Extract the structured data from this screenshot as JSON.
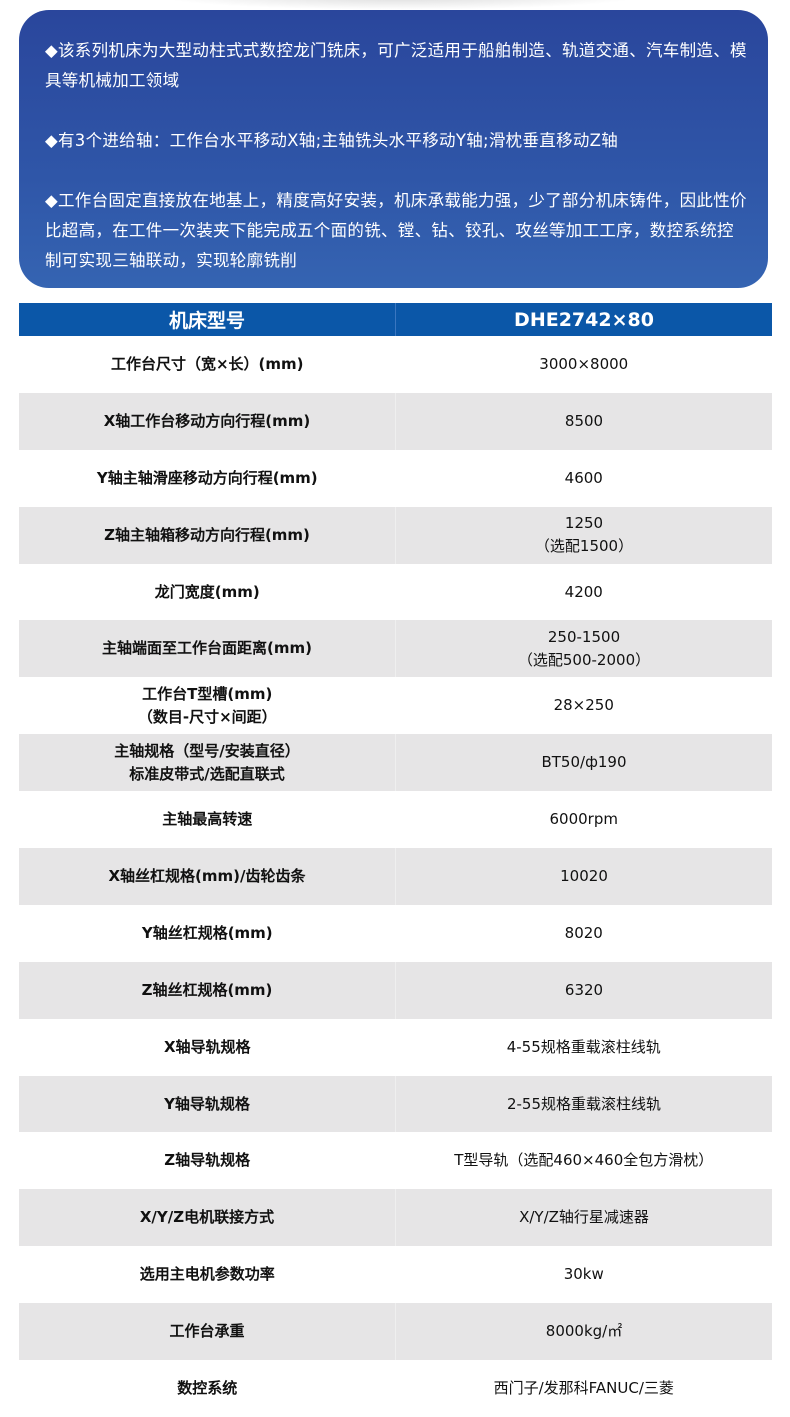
{
  "intro": {
    "paragraphs": [
      "◆该系列机床为大型动柱式式数控龙门铣床，可广泛适用于船舶制造、轨道交通、汽车制造、模具等机械加工领域",
      "◆有3个进给轴：工作台水平移动X轴;主轴铣头水平移动Y轴;滑枕垂直移动Z轴",
      "◆工作台固定直接放在地基上，精度高好安装，机床承载能力强，少了部分机床铸件，因此性价比超高，在工件一次装夹下能完成五个面的铣、镗、钻、铰孔、攻丝等加工工序，数控系统控制可实现三轴联动，实现轮廓铣削"
    ]
  },
  "table": {
    "header": [
      "机床型号",
      "DHE2742×80"
    ],
    "rows": [
      [
        "工作台尺寸（宽×长）(mm)",
        "3000×8000"
      ],
      [
        "X轴工作台移动方向行程(mm)",
        "8500"
      ],
      [
        "Y轴主轴滑座移动方向行程(mm)",
        "4600"
      ],
      [
        "Z轴主轴箱移动方向行程(mm)",
        "1250\n（选配1500）"
      ],
      [
        "龙门宽度(mm)",
        "4200"
      ],
      [
        "主轴端面至工作台面距离(mm)",
        "250-1500\n（选配500-2000）"
      ],
      [
        "工作台T型槽(mm)\n（数目-尺寸×间距）",
        "28×250"
      ],
      [
        "主轴规格（型号/安装直径）\n标准皮带式/选配直联式",
        "BT50/ф190"
      ],
      [
        "主轴最高转速",
        "6000rpm"
      ],
      [
        "X轴丝杠规格(mm)/齿轮齿条",
        "10020"
      ],
      [
        "Y轴丝杠规格(mm)",
        "8020"
      ],
      [
        "Z轴丝杠规格(mm)",
        "6320"
      ],
      [
        "X轴导轨规格",
        "4-55规格重载滚柱线轨"
      ],
      [
        "Y轴导轨规格",
        "2-55规格重载滚柱线轨"
      ],
      [
        "Z轴导轨规格",
        "T型导轨（选配460×460全包方滑枕）"
      ],
      [
        "X/Y/Z电机联接方式",
        "X/Y/Z轴行星减速器"
      ],
      [
        "选用主电机参数功率",
        "30kw"
      ],
      [
        "工作台承重",
        "8000kg/㎡"
      ],
      [
        "数控系统",
        "西门子/发那科FANUC/三菱"
      ]
    ]
  },
  "colors": {
    "intro_bg": "#2f56a8",
    "header_bg": "#0b57a8",
    "alt_row": "#e6e5e6"
  }
}
